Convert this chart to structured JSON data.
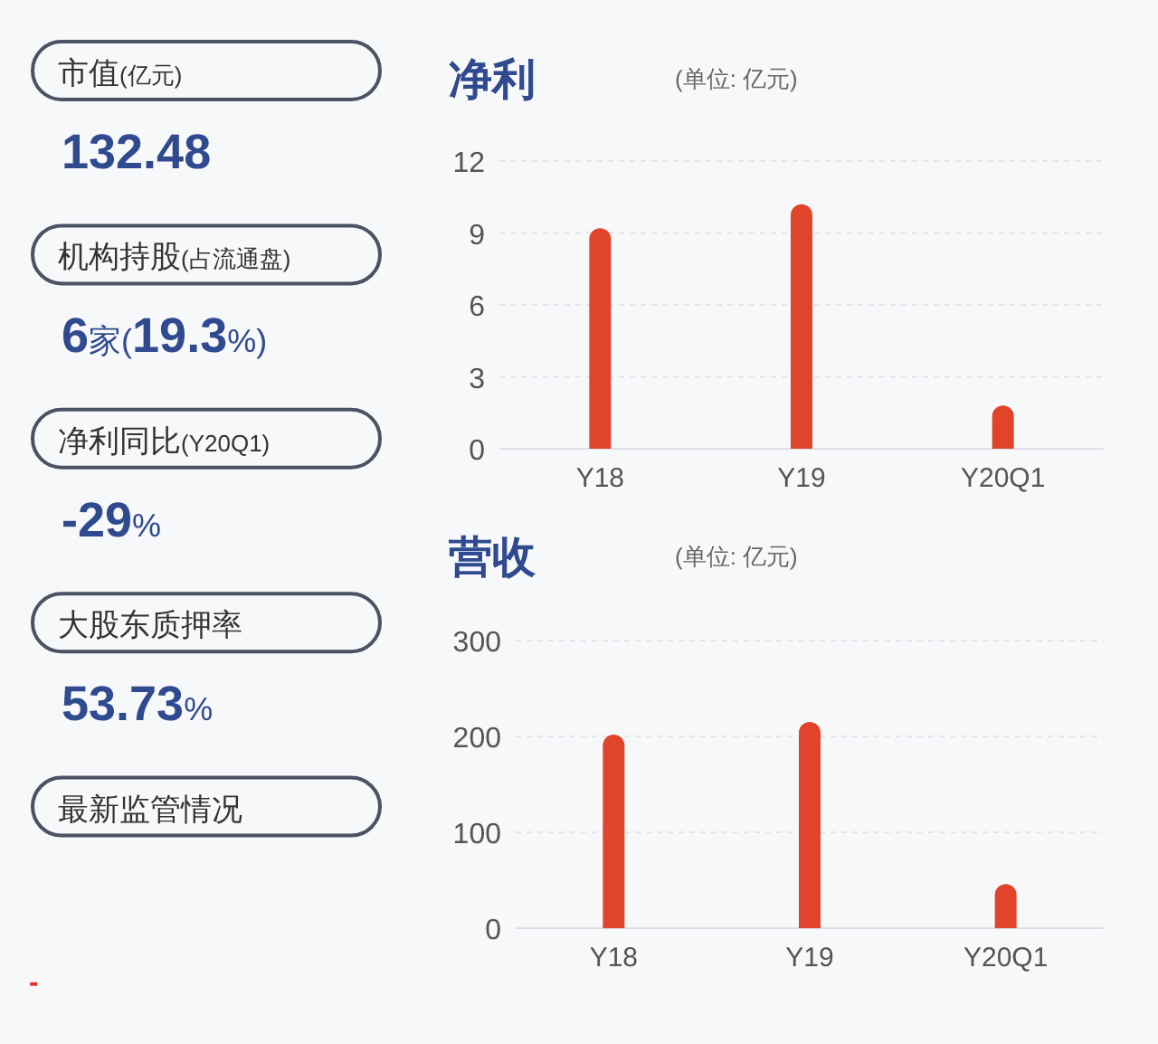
{
  "chart_data": [
    {
      "type": "other",
      "categories": [
        "市值(亿元)",
        "机构持股(占流通盘)",
        "净利同比(Y20Q1)",
        "大股东质押率",
        "最新监管情况"
      ],
      "value_labels": [
        "132.48",
        "6家(19.3%)",
        "-29%",
        "53.73%",
        null
      ],
      "annotations": [
        "-"
      ],
      "color": "#2f4a8f"
    },
    {
      "type": "bar",
      "title": "净利",
      "subtitle": "(单位: 亿元)",
      "categories": [
        "Y18",
        "Y19",
        "Y20Q1"
      ],
      "values": [
        9.2,
        10.2,
        1.8
      ],
      "color": "#e0452c",
      "ylim": [
        0,
        12
      ],
      "yticks": [
        0,
        3,
        6,
        9,
        12
      ],
      "grid": "y"
    },
    {
      "type": "bar",
      "title": "营收",
      "subtitle": "(单位: 亿元)",
      "categories": [
        "Y18",
        "Y19",
        "Y20Q1"
      ],
      "values": [
        202,
        215,
        46
      ],
      "color": "#e0452c",
      "ylim": [
        0,
        300
      ],
      "yticks": [
        0,
        100,
        200,
        300
      ],
      "grid": "y"
    }
  ]
}
